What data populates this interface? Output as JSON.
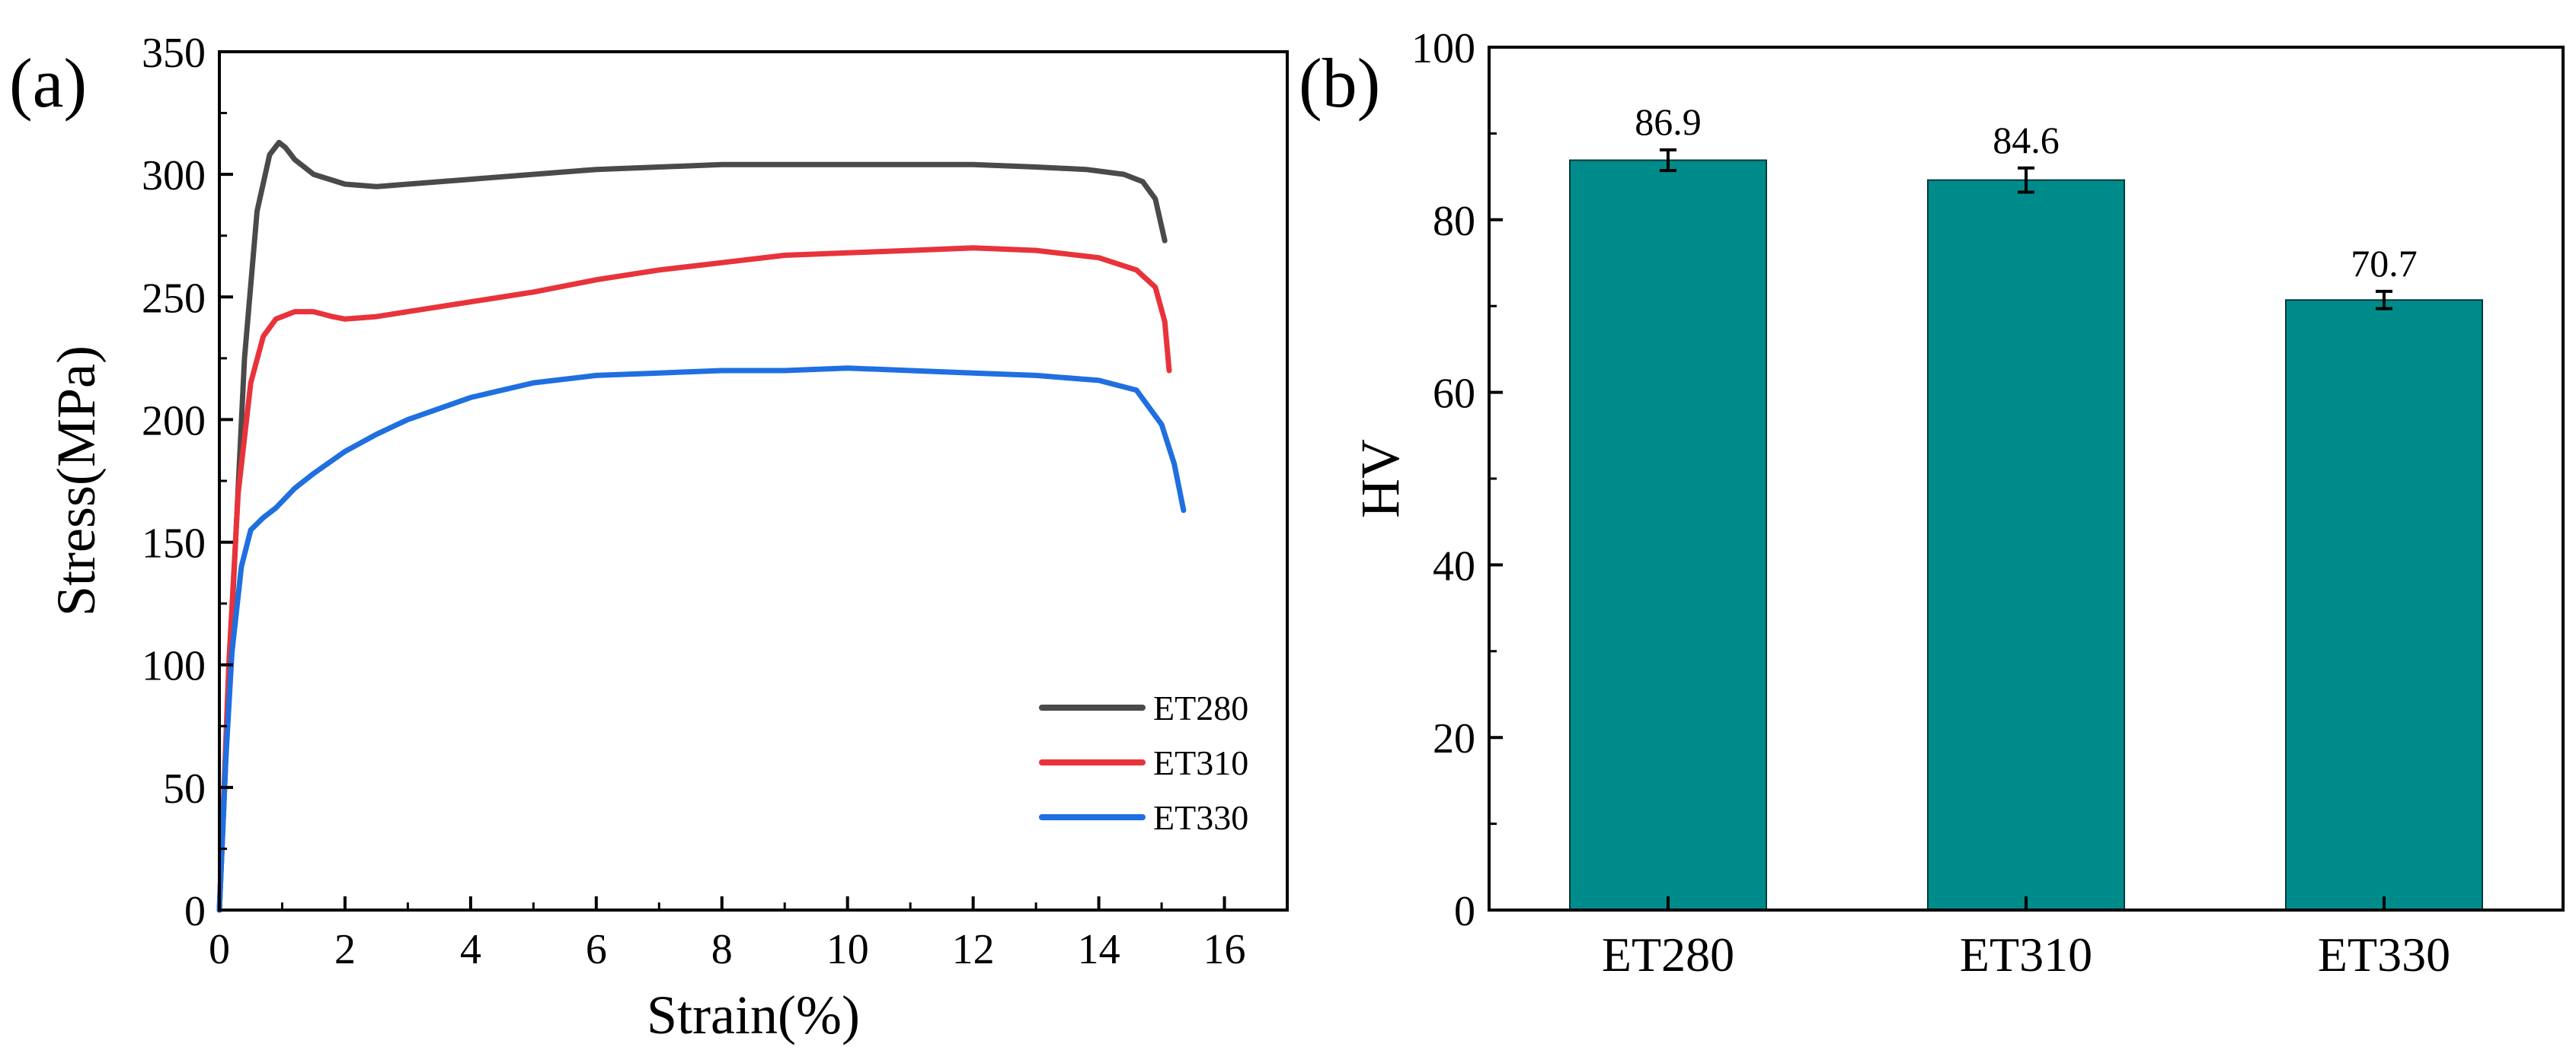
{
  "chart_data": [
    {
      "panel_label": "(a)",
      "type": "line",
      "xlabel": "Strain(%)",
      "ylabel": "Stress(MPa)",
      "xlim": [
        0,
        17
      ],
      "ylim": [
        0,
        350
      ],
      "xticks": [
        0,
        2,
        4,
        6,
        8,
        10,
        12,
        14,
        16
      ],
      "yticks": [
        0,
        50,
        100,
        150,
        200,
        250,
        300,
        350
      ],
      "legend_position": "lower-right",
      "series": [
        {
          "name": "ET280",
          "color": "#4a4a4a",
          "x": [
            0,
            0.2,
            0.4,
            0.6,
            0.8,
            0.95,
            1.05,
            1.2,
            1.5,
            2.0,
            2.5,
            3.0,
            4.0,
            5.0,
            6.0,
            7.0,
            8.0,
            9.0,
            10.0,
            11.0,
            12.0,
            13.0,
            13.8,
            14.4,
            14.7,
            14.9,
            15.05
          ],
          "y": [
            0,
            120,
            225,
            285,
            308,
            313,
            311,
            306,
            300,
            296,
            295,
            296,
            298,
            300,
            302,
            303,
            304,
            304,
            304,
            304,
            304,
            303,
            302,
            300,
            297,
            290,
            273
          ]
        },
        {
          "name": "ET310",
          "color": "#e8333b",
          "x": [
            0,
            0.15,
            0.3,
            0.5,
            0.7,
            0.9,
            1.2,
            1.5,
            1.8,
            2.0,
            2.5,
            3.0,
            4.0,
            5.0,
            6.0,
            7.0,
            8.0,
            9.0,
            10.0,
            11.0,
            12.0,
            13.0,
            14.0,
            14.6,
            14.9,
            15.05,
            15.12
          ],
          "y": [
            0,
            100,
            170,
            215,
            234,
            241,
            244,
            244,
            242,
            241,
            242,
            244,
            248,
            252,
            257,
            261,
            264,
            267,
            268,
            269,
            270,
            269,
            266,
            261,
            254,
            240,
            220
          ]
        },
        {
          "name": "ET330",
          "color": "#1f6fe0",
          "x": [
            0,
            0.1,
            0.2,
            0.35,
            0.5,
            0.7,
            0.9,
            1.2,
            1.5,
            2.0,
            2.5,
            3.0,
            4.0,
            5.0,
            6.0,
            7.0,
            8.0,
            9.0,
            10.0,
            11.0,
            12.0,
            13.0,
            14.0,
            14.6,
            15.0,
            15.2,
            15.35
          ],
          "y": [
            0,
            60,
            105,
            140,
            155,
            160,
            164,
            172,
            178,
            187,
            194,
            200,
            209,
            215,
            218,
            219,
            220,
            220,
            221,
            220,
            219,
            218,
            216,
            212,
            198,
            182,
            163
          ]
        }
      ]
    },
    {
      "panel_label": "(b)",
      "type": "bar",
      "xlabel": "",
      "ylabel": "HV",
      "ylim": [
        0,
        100
      ],
      "yticks": [
        0,
        20,
        40,
        60,
        80,
        100
      ],
      "categories": [
        "ET280",
        "ET310",
        "ET330"
      ],
      "values": [
        86.9,
        84.6,
        70.7
      ],
      "value_labels": [
        "86.9",
        "84.6",
        "70.7"
      ],
      "errors": [
        1.2,
        1.4,
        1.0
      ],
      "bar_color": "#008b8b"
    }
  ]
}
